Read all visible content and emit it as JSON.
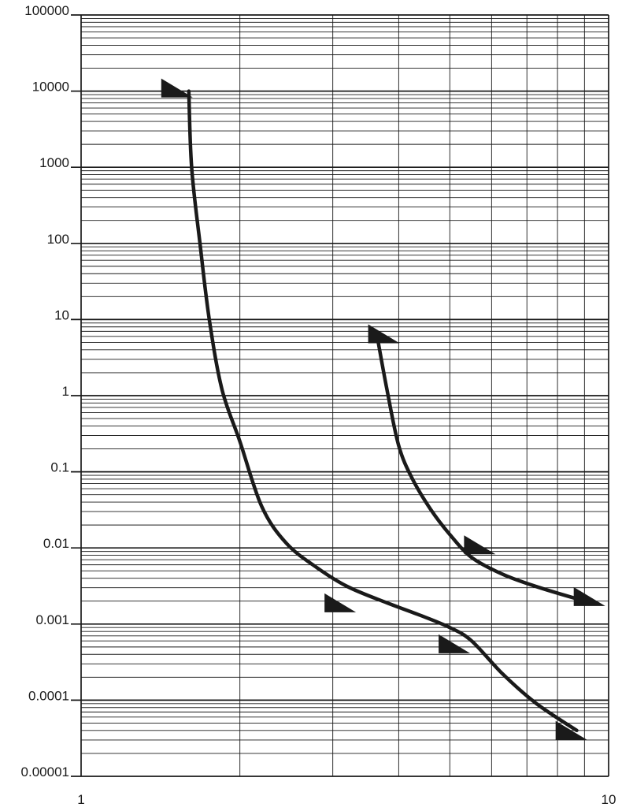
{
  "chart_data": {
    "type": "line",
    "x_scale": "log",
    "y_scale": "log",
    "xlim": [
      1,
      10
    ],
    "ylim": [
      1e-05,
      100000
    ],
    "x_ticks": [
      "1",
      "10"
    ],
    "y_ticks": [
      "100000",
      "10000",
      "1000",
      "100",
      "10",
      "1",
      "0.1",
      "0.01",
      "0.001",
      "0.0001",
      "0.00001"
    ],
    "grid": true,
    "line_color": "#1a1a1a",
    "series": [
      {
        "x": [
          1.6,
          1.62,
          1.68,
          1.75,
          1.85,
          2.0,
          2.2,
          2.45,
          2.8,
          3.2,
          3.8,
          4.4,
          5.0,
          5.5,
          6.3,
          7.3,
          8.7
        ],
        "y": [
          10000,
          1000,
          100,
          10,
          1.2,
          0.25,
          0.035,
          0.0115,
          0.0055,
          0.0031,
          0.0019,
          0.0013,
          0.0009,
          0.0006,
          0.00022,
          9e-05,
          4e-05
        ],
        "arrows": [
          {
            "x": 1.52,
            "y": 11000
          },
          {
            "x": 3.1,
            "y": 0.0019
          },
          {
            "x": 5.1,
            "y": 0.00055
          },
          {
            "x": 8.5,
            "y": 4e-05
          }
        ]
      },
      {
        "x": [
          3.65,
          3.8,
          4.0,
          4.25,
          4.6,
          5.0,
          5.5,
          6.3,
          7.3,
          8.8
        ],
        "y": [
          5.5,
          1.2,
          0.22,
          0.08,
          0.032,
          0.015,
          0.0075,
          0.0045,
          0.0031,
          0.0021
        ],
        "arrows": [
          {
            "x": 3.75,
            "y": 6.5
          },
          {
            "x": 5.7,
            "y": 0.011
          },
          {
            "x": 9.2,
            "y": 0.0023
          }
        ]
      }
    ]
  }
}
